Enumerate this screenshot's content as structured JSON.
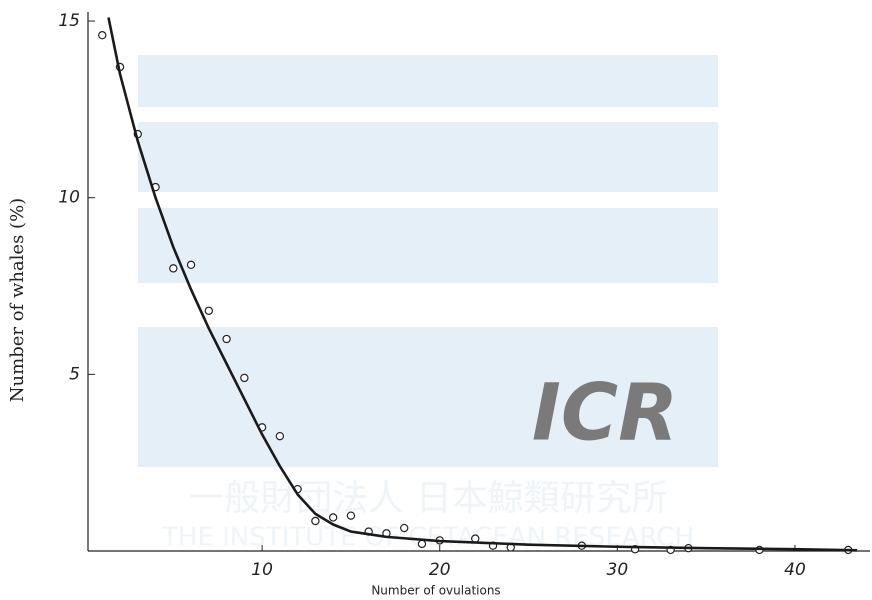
{
  "chart_data": {
    "type": "scatter",
    "xlabel": "Number of ovulations",
    "ylabel": "Number of whales (%)",
    "xlim": [
      0,
      44
    ],
    "ylim": [
      0,
      15.2
    ],
    "xticks": [
      10,
      20,
      30,
      40
    ],
    "yticks": [
      5,
      10,
      15
    ],
    "series": [
      {
        "type": "scatter",
        "color": "#222222",
        "x": [
          1,
          2,
          3,
          4,
          5,
          6,
          7,
          8,
          9,
          10,
          11,
          12,
          13,
          14,
          15,
          16,
          17,
          18,
          19,
          20,
          22,
          23,
          24,
          28,
          31,
          33,
          34,
          38,
          43
        ],
        "values": [
          14.6,
          13.7,
          11.8,
          10.3,
          8.0,
          8.1,
          6.8,
          6.0,
          4.9,
          3.5,
          3.25,
          1.75,
          0.85,
          0.95,
          1.0,
          0.55,
          0.5,
          0.65,
          0.2,
          0.3,
          0.35,
          0.15,
          0.1,
          0.15,
          0.05,
          0.03,
          0.08,
          0.03,
          0.03
        ]
      },
      {
        "type": "line",
        "color": "#1a1a1a",
        "x": [
          1.35,
          2,
          3,
          4,
          5,
          6,
          7,
          8,
          9,
          10,
          11,
          12,
          13,
          14,
          15,
          17,
          20,
          25,
          30,
          35,
          40,
          43.5
        ],
        "values": [
          15.1,
          13.5,
          11.6,
          10.0,
          8.6,
          7.4,
          6.3,
          5.3,
          4.3,
          3.3,
          2.4,
          1.6,
          1.05,
          0.75,
          0.55,
          0.4,
          0.28,
          0.18,
          0.12,
          0.08,
          0.05,
          0.02
        ]
      }
    ]
  },
  "watermark": {
    "logo": "ICR",
    "line1": "一般財団法人 日本鯨類研究所",
    "line2": "THE INSTITUTE OF CETACEAN RESEARCH"
  }
}
